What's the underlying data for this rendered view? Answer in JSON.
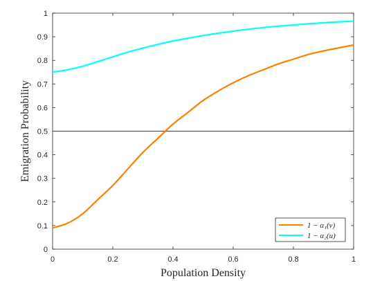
{
  "chart_data": {
    "type": "line",
    "xlabel": "Population Density",
    "ylabel": "Emigration Probability",
    "xlim": [
      0,
      1
    ],
    "ylim": [
      0,
      1
    ],
    "xticks": [
      "0",
      "0.2",
      "0.4",
      "0.6",
      "0.8",
      "1"
    ],
    "yticks": [
      "0",
      "0.1",
      "0.2",
      "0.3",
      "0.4",
      "0.5",
      "0.6",
      "0.7",
      "0.8",
      "0.9",
      "1"
    ],
    "grid": false,
    "legend_position": "bottom-right",
    "reference_line": {
      "y": 0.5,
      "color": "#404040"
    },
    "series": [
      {
        "name": "1 − α₁(v)",
        "color": "#ff8000",
        "x": [
          0,
          0.05,
          0.1,
          0.15,
          0.2,
          0.25,
          0.3,
          0.35,
          0.4,
          0.45,
          0.5,
          0.55,
          0.6,
          0.65,
          0.7,
          0.75,
          0.8,
          0.85,
          0.9,
          0.95,
          1
        ],
        "y": [
          0.09,
          0.11,
          0.15,
          0.21,
          0.27,
          0.34,
          0.41,
          0.47,
          0.53,
          0.58,
          0.63,
          0.67,
          0.705,
          0.735,
          0.76,
          0.785,
          0.805,
          0.825,
          0.84,
          0.853,
          0.865
        ]
      },
      {
        "name": "1 − α₂(u)",
        "color": "#00ffff",
        "x": [
          0,
          0.05,
          0.1,
          0.15,
          0.2,
          0.25,
          0.3,
          0.35,
          0.4,
          0.45,
          0.5,
          0.55,
          0.6,
          0.65,
          0.7,
          0.75,
          0.8,
          0.85,
          0.9,
          0.95,
          1
        ],
        "y": [
          0.75,
          0.76,
          0.775,
          0.795,
          0.815,
          0.835,
          0.852,
          0.868,
          0.882,
          0.894,
          0.905,
          0.915,
          0.924,
          0.932,
          0.939,
          0.945,
          0.95,
          0.955,
          0.959,
          0.963,
          0.966
        ]
      }
    ]
  }
}
